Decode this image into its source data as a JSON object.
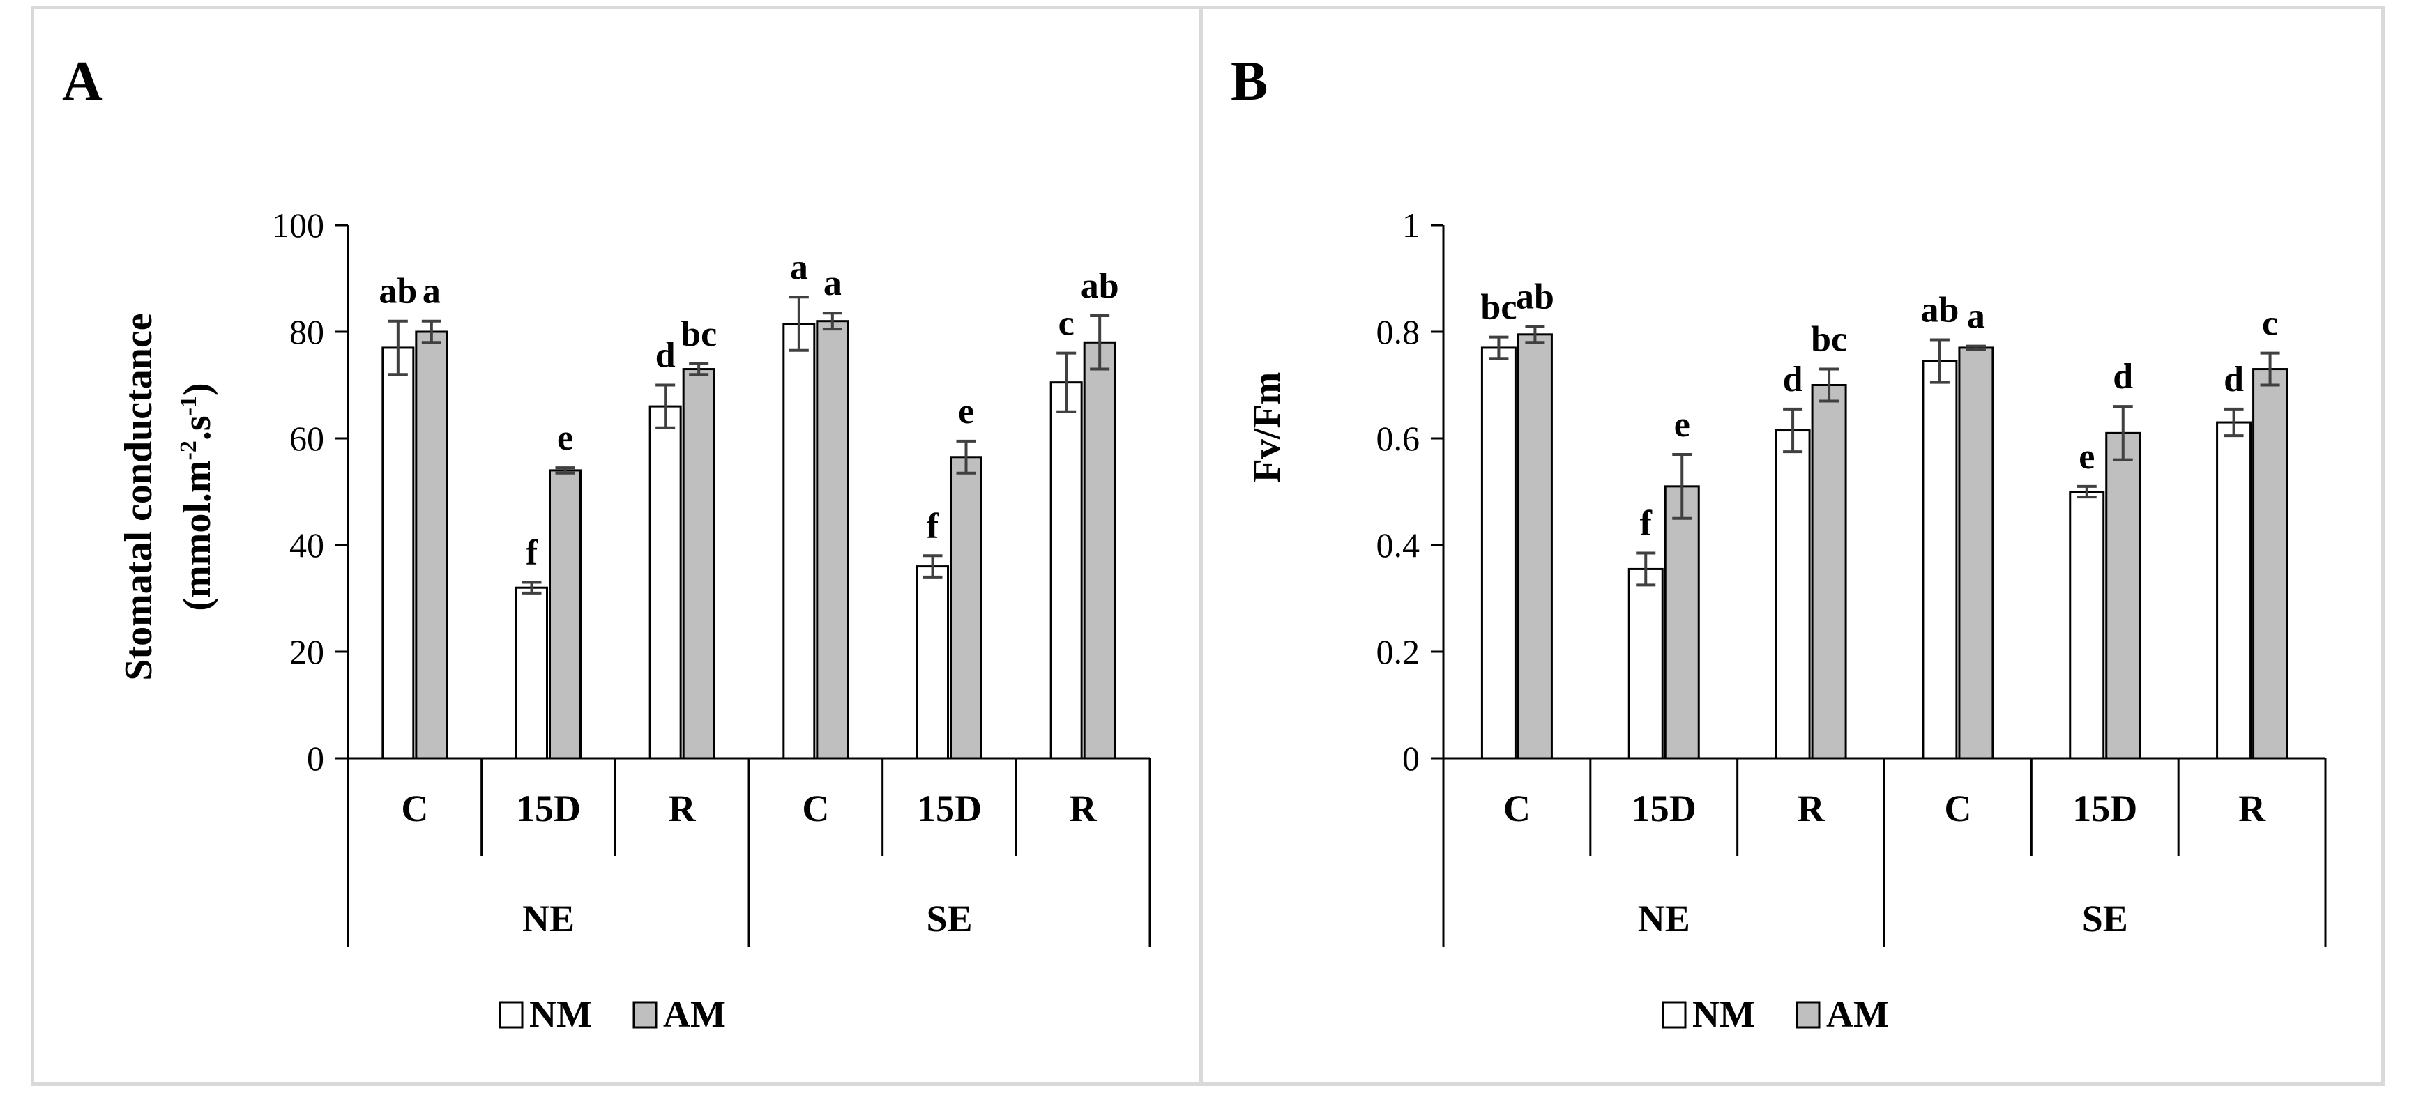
{
  "colors": {
    "nm_fill": "#ffffff",
    "am_fill": "#bfbfbf",
    "stroke": "#000000",
    "error": "#404040"
  },
  "legend": [
    {
      "name": "NM",
      "color": "#ffffff"
    },
    {
      "name": "AM",
      "color": "#bfbfbf"
    }
  ],
  "chart_data": [
    {
      "panel": "A",
      "type": "bar",
      "ylabel_line1": "Stomatal conductance",
      "ylabel_line2_pre": "(mmol.m",
      "ylabel_sup1": "-2",
      "ylabel_mid": ".s",
      "ylabel_sup2": "-1",
      "ylabel_post": ")",
      "ylim": [
        0,
        100
      ],
      "yticks": [
        0,
        20,
        40,
        60,
        80,
        100
      ],
      "ytick_labels": [
        "0",
        "20",
        "40",
        "60",
        "80",
        "100"
      ],
      "categories": [
        "C",
        "15D",
        "R",
        "C",
        "15D",
        "R"
      ],
      "groups": [
        {
          "label": "NE",
          "span": 3
        },
        {
          "label": "SE",
          "span": 3
        }
      ],
      "series": [
        {
          "name": "NM",
          "values": [
            77,
            32,
            66,
            81.5,
            36,
            70.5
          ],
          "errors": [
            5,
            1,
            4,
            5,
            2,
            5.5
          ],
          "sig": [
            "ab",
            "f",
            "d",
            "a",
            "f",
            "c"
          ]
        },
        {
          "name": "AM",
          "values": [
            80,
            54,
            73,
            82,
            56.5,
            78
          ],
          "errors": [
            2,
            0.5,
            1,
            1.5,
            3,
            5
          ],
          "sig": [
            "a",
            "e",
            "bc",
            "a",
            "e",
            "ab"
          ]
        }
      ]
    },
    {
      "panel": "B",
      "type": "bar",
      "ylabel_line1": "Fv/Fm",
      "ylim": [
        0,
        1
      ],
      "yticks": [
        0,
        0.2,
        0.4,
        0.6,
        0.8,
        1
      ],
      "ytick_labels": [
        "0",
        "0.2",
        "0.4",
        "0.6",
        "0.8",
        "1"
      ],
      "categories": [
        "C",
        "15D",
        "R",
        "C",
        "15D",
        "R"
      ],
      "groups": [
        {
          "label": "NE",
          "span": 3
        },
        {
          "label": "SE",
          "span": 3
        }
      ],
      "series": [
        {
          "name": "NM",
          "values": [
            0.77,
            0.355,
            0.615,
            0.745,
            0.5,
            0.63
          ],
          "errors": [
            0.02,
            0.03,
            0.04,
            0.04,
            0.01,
            0.025
          ],
          "sig": [
            "bc",
            "f",
            "d",
            "ab",
            "e",
            "d"
          ]
        },
        {
          "name": "AM",
          "values": [
            0.795,
            0.51,
            0.7,
            0.77,
            0.61,
            0.73
          ],
          "errors": [
            0.015,
            0.06,
            0.03,
            0.003,
            0.05,
            0.03
          ],
          "sig": [
            "ab",
            "e",
            "bc",
            "a",
            "d",
            "c"
          ]
        }
      ]
    }
  ]
}
